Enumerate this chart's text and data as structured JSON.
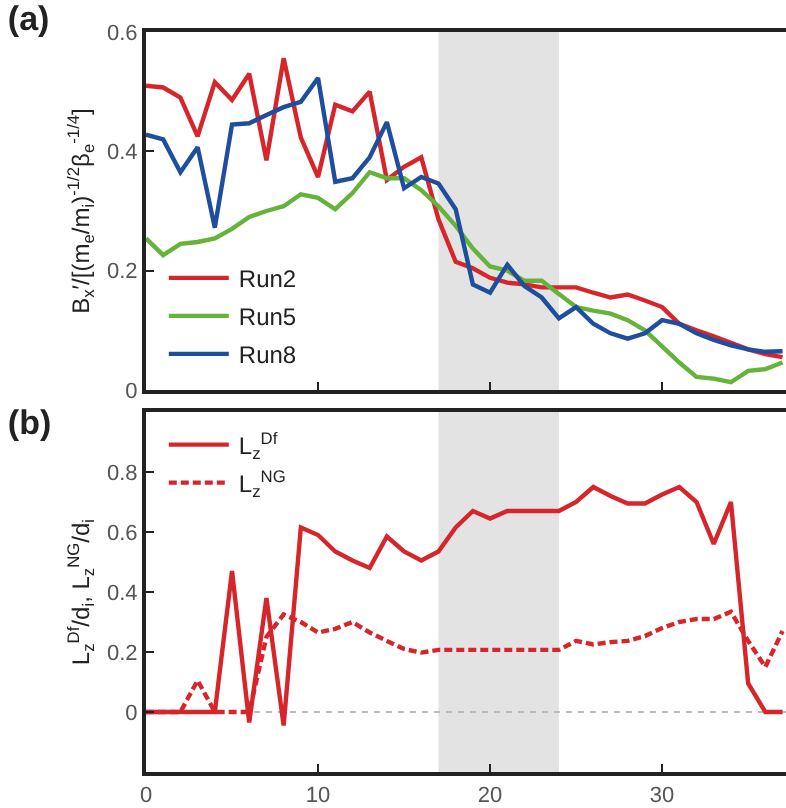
{
  "chart_data": [
    {
      "type": "line",
      "title": "(a)",
      "ylabel": "B$_{x}$′/[(m$_{e}$/m$_{i}$)$^{-1/2}$β$_{e}$$^{-1/4}$]",
      "x": [
        0,
        1,
        2,
        3,
        4,
        5,
        6,
        7,
        8,
        9,
        10,
        11,
        12,
        13,
        14,
        15,
        16,
        17,
        18,
        19,
        20,
        21,
        22,
        23,
        24,
        25,
        26,
        27,
        28,
        29,
        30,
        31,
        32,
        33,
        34,
        35,
        36,
        37
      ],
      "series": [
        {
          "name": "Run2",
          "color": "#d7262b",
          "values": [
            0.51,
            0.507,
            0.49,
            0.425,
            0.516,
            0.486,
            0.53,
            0.385,
            0.556,
            0.423,
            0.357,
            0.478,
            0.467,
            0.5,
            0.352,
            0.374,
            0.39,
            0.286,
            0.215,
            0.204,
            0.188,
            0.18,
            0.177,
            0.172,
            0.172,
            0.172,
            0.163,
            0.155,
            0.16,
            0.15,
            0.139,
            0.111,
            0.1,
            0.09,
            0.079,
            0.068,
            0.06,
            0.055
          ]
        },
        {
          "name": "Run5",
          "color": "#66b33c",
          "values": [
            0.254,
            0.226,
            0.245,
            0.248,
            0.254,
            0.27,
            0.29,
            0.3,
            0.308,
            0.328,
            0.322,
            0.303,
            0.33,
            0.365,
            0.355,
            0.355,
            0.335,
            0.308,
            0.275,
            0.237,
            0.207,
            0.2,
            0.183,
            0.183,
            0.161,
            0.139,
            0.133,
            0.128,
            0.117,
            0.1,
            0.073,
            0.046,
            0.022,
            0.019,
            0.013,
            0.032,
            0.035,
            0.046
          ]
        },
        {
          "name": "Run8",
          "color": "#1f4e9c",
          "values": [
            0.428,
            0.42,
            0.365,
            0.407,
            0.272,
            0.445,
            0.447,
            0.461,
            0.474,
            0.483,
            0.523,
            0.349,
            0.355,
            0.39,
            0.449,
            0.338,
            0.357,
            0.346,
            0.303,
            0.177,
            0.163,
            0.21,
            0.174,
            0.155,
            0.12,
            0.139,
            0.111,
            0.095,
            0.086,
            0.095,
            0.117,
            0.111,
            0.095,
            0.084,
            0.075,
            0.068,
            0.064,
            0.065
          ]
        }
      ],
      "xlim": [
        0,
        37.2
      ],
      "xticks": [
        0,
        10,
        20,
        30
      ],
      "ylim": [
        0,
        0.6
      ],
      "yticks": [
        {
          "value": 0,
          "label": "0"
        },
        0.2,
        0.4,
        0.6
      ],
      "bands": [
        {
          "axis": "x",
          "from": 17,
          "to": 24,
          "color": "#e3e3e3"
        }
      ],
      "legend": "bottom left",
      "marker": "none",
      "tick_labels": "y",
      "grid": false
    },
    {
      "type": "line",
      "title": "(b)",
      "ylabel": "L$_{z}$$^{Df}$/d$_{i}$, L$_{z}$$^{NG}$/d$_{i}$",
      "x": [
        0,
        1,
        2,
        3,
        4,
        5,
        6,
        7,
        8,
        9,
        10,
        11,
        12,
        13,
        14,
        15,
        16,
        17,
        18,
        19,
        20,
        21,
        22,
        23,
        24,
        25,
        26,
        27,
        28,
        29,
        30,
        31,
        32,
        33,
        34,
        35,
        36,
        37
      ],
      "series": [
        {
          "name": "L$_{z}$$^{Df}$",
          "color": "#d7262b",
          "line_style": "solid",
          "values": [
            0,
            0,
            0,
            0,
            0,
            0.47,
            -0.035,
            0.38,
            -0.045,
            0.615,
            0.59,
            0.535,
            0.505,
            0.48,
            0.585,
            0.535,
            0.505,
            0.535,
            0.615,
            0.67,
            0.645,
            0.67,
            0.67,
            0.67,
            0.67,
            0.7,
            0.75,
            0.72,
            0.695,
            0.695,
            0.725,
            0.75,
            0.7,
            0.56,
            0.7,
            0.095,
            0,
            0
          ]
        },
        {
          "name": "L$_{z}$$^{NG}$",
          "color": "#d7262b",
          "line_style": "dashed",
          "values": [
            0,
            0,
            0,
            0.105,
            0,
            0,
            0,
            0.25,
            0.325,
            0.3,
            0.265,
            0.277,
            0.3,
            0.265,
            0.237,
            0.21,
            0.198,
            0.207,
            0.207,
            0.207,
            0.207,
            0.207,
            0.207,
            0.207,
            0.207,
            0.237,
            0.225,
            0.233,
            0.237,
            0.253,
            0.28,
            0.3,
            0.31,
            0.31,
            0.334,
            0.237,
            0.15,
            0.27
          ]
        }
      ],
      "xlim": [
        0,
        37.2
      ],
      "xticks": [
        {
          "value": 0,
          "label": "0"
        },
        10,
        20,
        30
      ],
      "ylim": [
        -0.2,
        1.0
      ],
      "yticks": [
        {
          "value": 0,
          "label": "0"
        },
        0.2,
        0.4,
        0.6,
        0.8
      ],
      "bands": [
        {
          "axis": "x",
          "from": 17,
          "to": 24,
          "color": "#e3e3e3"
        }
      ],
      "ref_lines": [
        {
          "axis": "y",
          "value": 0,
          "color": "#bbbbbb",
          "line_style": "dotted"
        }
      ],
      "legend": "top left",
      "marker": "none",
      "grid": false
    }
  ]
}
